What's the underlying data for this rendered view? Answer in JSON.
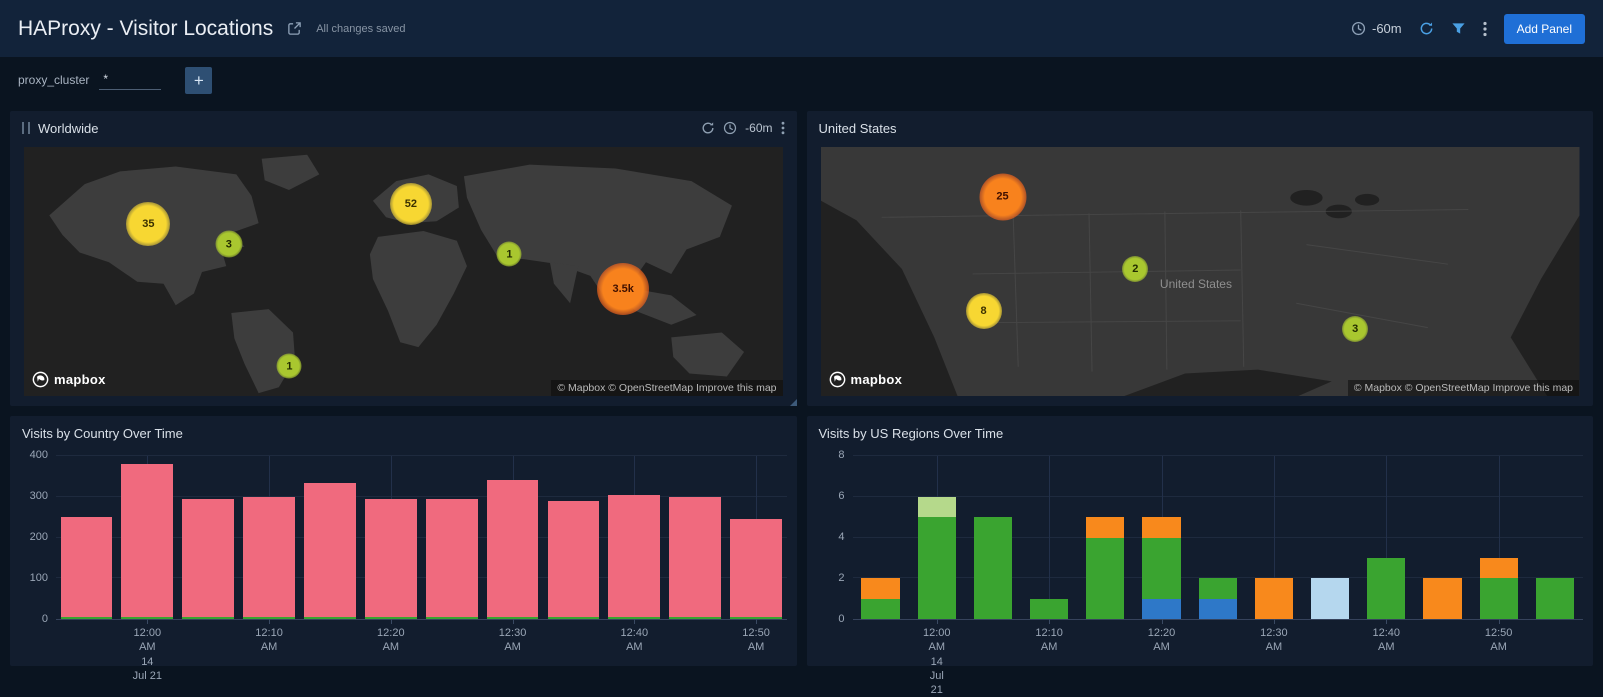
{
  "header": {
    "title": "HAProxy - Visitor Locations",
    "saved_status": "All changes saved",
    "time_range": "-60m",
    "add_panel_label": "Add Panel"
  },
  "filter_bar": {
    "name": "proxy_cluster",
    "value": "*",
    "add_label": "+"
  },
  "map": {
    "logo_text": "mapbox",
    "attribution": "© Mapbox © OpenStreetMap Improve this map"
  },
  "panels": {
    "worldwide": {
      "title": "Worldwide",
      "time_range": "-60m",
      "bubbles": [
        {
          "label": "35",
          "color": "yellow",
          "x": 16.4,
          "y": 31,
          "size": 44
        },
        {
          "label": "3",
          "color": "yellowgreen",
          "x": 27,
          "y": 39,
          "size": 27
        },
        {
          "label": "52",
          "color": "yellow",
          "x": 51,
          "y": 23,
          "size": 42
        },
        {
          "label": "1",
          "color": "yellowgreen",
          "x": 64,
          "y": 43,
          "size": 25
        },
        {
          "label": "3.5k",
          "color": "orange",
          "x": 79,
          "y": 57,
          "size": 52
        },
        {
          "label": "1",
          "color": "yellowgreen",
          "x": 35,
          "y": 88,
          "size": 25
        }
      ]
    },
    "united_states": {
      "title": "United States",
      "map_label": "United States",
      "bubbles": [
        {
          "label": "25",
          "color": "orange",
          "x": 24,
          "y": 20,
          "size": 47
        },
        {
          "label": "8",
          "color": "yellow",
          "x": 21.5,
          "y": 66,
          "size": 36
        },
        {
          "label": "2",
          "color": "yellowgreen",
          "x": 41.5,
          "y": 49,
          "size": 26
        },
        {
          "label": "3",
          "color": "yellowgreen",
          "x": 70.5,
          "y": 73,
          "size": 26
        }
      ]
    },
    "visits_by_country": {
      "title": "Visits by Country Over Time"
    },
    "visits_by_us_regions": {
      "title": "Visits by US Regions Over Time"
    }
  },
  "colors": {
    "pink": "#f06a7e",
    "green": "#3aa430",
    "lightgreen": "#b5d98b",
    "orange": "#f8891c",
    "blue": "#2e78c8",
    "lightblue": "#b5d7ee",
    "accent_blue": "#1f6fd6",
    "bubble_yellow": "#f7d732",
    "bubble_yellowgreen": "#a9c72f",
    "bubble_orange": "#f8821d"
  },
  "chart_data": [
    {
      "type": "bar",
      "title": "Visits by Country Over Time",
      "stacked": true,
      "ylim": [
        0,
        400
      ],
      "yticks": [
        0,
        100,
        200,
        300,
        400
      ],
      "grid": true,
      "legend": "none",
      "x_tick_labels": [
        "12:00\nAM 14\nJul 21",
        "12:10\nAM",
        "12:20\nAM",
        "12:30\nAM",
        "12:40\nAM",
        "12:50\nAM"
      ],
      "x_tick_bar_indices": [
        1,
        3,
        5,
        7,
        9,
        11
      ],
      "bars": [
        {
          "segments": [
            [
              "green",
              5
            ],
            [
              "pink",
              245
            ]
          ]
        },
        {
          "segments": [
            [
              "green",
              5
            ],
            [
              "pink",
              375
            ]
          ]
        },
        {
          "segments": [
            [
              "green",
              5
            ],
            [
              "pink",
              290
            ]
          ]
        },
        {
          "segments": [
            [
              "green",
              5
            ],
            [
              "pink",
              295
            ]
          ]
        },
        {
          "segments": [
            [
              "green",
              5
            ],
            [
              "pink",
              330
            ]
          ]
        },
        {
          "segments": [
            [
              "green",
              5
            ],
            [
              "pink",
              290
            ]
          ]
        },
        {
          "segments": [
            [
              "green",
              5
            ],
            [
              "pink",
              290
            ]
          ]
        },
        {
          "segments": [
            [
              "green",
              5
            ],
            [
              "pink",
              335
            ]
          ]
        },
        {
          "segments": [
            [
              "green",
              5
            ],
            [
              "pink",
              285
            ]
          ]
        },
        {
          "segments": [
            [
              "green",
              5
            ],
            [
              "pink",
              300
            ]
          ]
        },
        {
          "segments": [
            [
              "green",
              5
            ],
            [
              "pink",
              295
            ]
          ]
        },
        {
          "segments": [
            [
              "green",
              5
            ],
            [
              "pink",
              240
            ]
          ]
        }
      ]
    },
    {
      "type": "bar",
      "title": "Visits by US Regions Over Time",
      "stacked": true,
      "ylim": [
        0,
        8
      ],
      "yticks": [
        0,
        2,
        4,
        6,
        8
      ],
      "grid": true,
      "legend": "none",
      "x_tick_labels": [
        "12:00\nAM 14\nJul 21",
        "12:10\nAM",
        "12:20\nAM",
        "12:30\nAM",
        "12:40\nAM",
        "12:50\nAM"
      ],
      "x_tick_bar_indices": [
        1,
        3,
        5,
        7,
        9,
        11
      ],
      "bars": [
        {
          "segments": [
            [
              "green",
              1
            ],
            [
              "orange",
              1
            ]
          ]
        },
        {
          "segments": [
            [
              "green",
              5
            ],
            [
              "lightgreen",
              1
            ]
          ]
        },
        {
          "segments": [
            [
              "green",
              5
            ]
          ]
        },
        {
          "segments": [
            [
              "green",
              1
            ]
          ]
        },
        {
          "segments": [
            [
              "green",
              4
            ],
            [
              "orange",
              1
            ]
          ]
        },
        {
          "segments": [
            [
              "blue",
              1
            ],
            [
              "green",
              3
            ],
            [
              "orange",
              1
            ]
          ]
        },
        {
          "segments": [
            [
              "blue",
              1
            ],
            [
              "green",
              1
            ]
          ]
        },
        {
          "segments": [
            [
              "orange",
              2
            ]
          ]
        },
        {
          "segments": [
            [
              "lightblue",
              2
            ]
          ]
        },
        {
          "segments": [
            [
              "green",
              3
            ]
          ]
        },
        {
          "segments": [
            [
              "orange",
              2
            ]
          ]
        },
        {
          "segments": [
            [
              "green",
              2
            ],
            [
              "orange",
              1
            ]
          ]
        },
        {
          "segments": [
            [
              "green",
              2
            ]
          ]
        }
      ]
    }
  ]
}
